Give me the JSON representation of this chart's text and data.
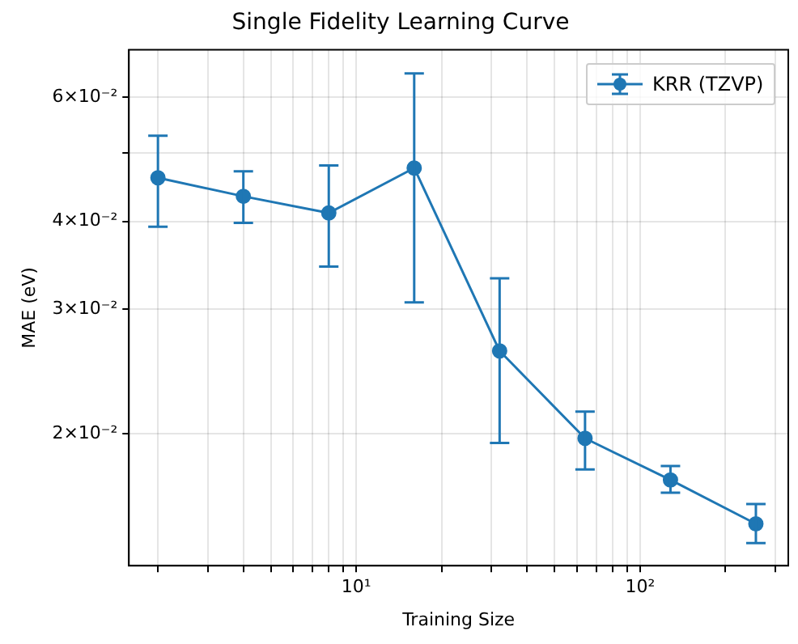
{
  "chart_data": {
    "type": "line",
    "title": "Single Fidelity Learning Curve",
    "xlabel": "Training Size",
    "ylabel": "MAE (eV)",
    "x": [
      2,
      4,
      8,
      16,
      32,
      64,
      128,
      256
    ],
    "series": [
      {
        "name": "KRR (TZVP)",
        "color": "#1f77b4",
        "values": [
          0.0461,
          0.0434,
          0.0411,
          0.0476,
          0.0262,
          0.0197,
          0.0172,
          0.0149
        ],
        "errors": [
          [
            0.0393,
            0.0529
          ],
          [
            0.0398,
            0.0471
          ],
          [
            0.0345,
            0.048
          ],
          [
            0.0307,
            0.0648
          ],
          [
            0.0194,
            0.0332
          ],
          [
            0.0178,
            0.0215
          ],
          [
            0.0165,
            0.018
          ],
          [
            0.014,
            0.0159
          ]
        ]
      }
    ],
    "log": "xy",
    "xlim": [
      1.58,
      333
    ],
    "ylim": [
      0.013,
      0.07
    ],
    "xticks": [
      {
        "value": 2,
        "label": null
      },
      {
        "value": 3,
        "label": null
      },
      {
        "value": 4,
        "label": null
      },
      {
        "value": 5,
        "label": null
      },
      {
        "value": 6,
        "label": null
      },
      {
        "value": 7,
        "label": null
      },
      {
        "value": 8,
        "label": null
      },
      {
        "value": 9,
        "label": null
      },
      {
        "value": 10,
        "label": "10¹"
      },
      {
        "value": 20,
        "label": null
      },
      {
        "value": 30,
        "label": null
      },
      {
        "value": 40,
        "label": null
      },
      {
        "value": 50,
        "label": null
      },
      {
        "value": 60,
        "label": null
      },
      {
        "value": 70,
        "label": null
      },
      {
        "value": 80,
        "label": null
      },
      {
        "value": 90,
        "label": null
      },
      {
        "value": 100,
        "label": "10²"
      },
      {
        "value": 200,
        "label": null
      },
      {
        "value": 300,
        "label": null
      }
    ],
    "yticks": [
      {
        "value": 0.02,
        "label": "2×10⁻²"
      },
      {
        "value": 0.03,
        "label": "3×10⁻²"
      },
      {
        "value": 0.04,
        "label": "4×10⁻²"
      },
      {
        "value": 0.05,
        "label": null
      },
      {
        "value": 0.06,
        "label": "6×10⁻²"
      }
    ],
    "grid": true,
    "legend": "top right",
    "marker": "circle",
    "line_style": "solid"
  }
}
